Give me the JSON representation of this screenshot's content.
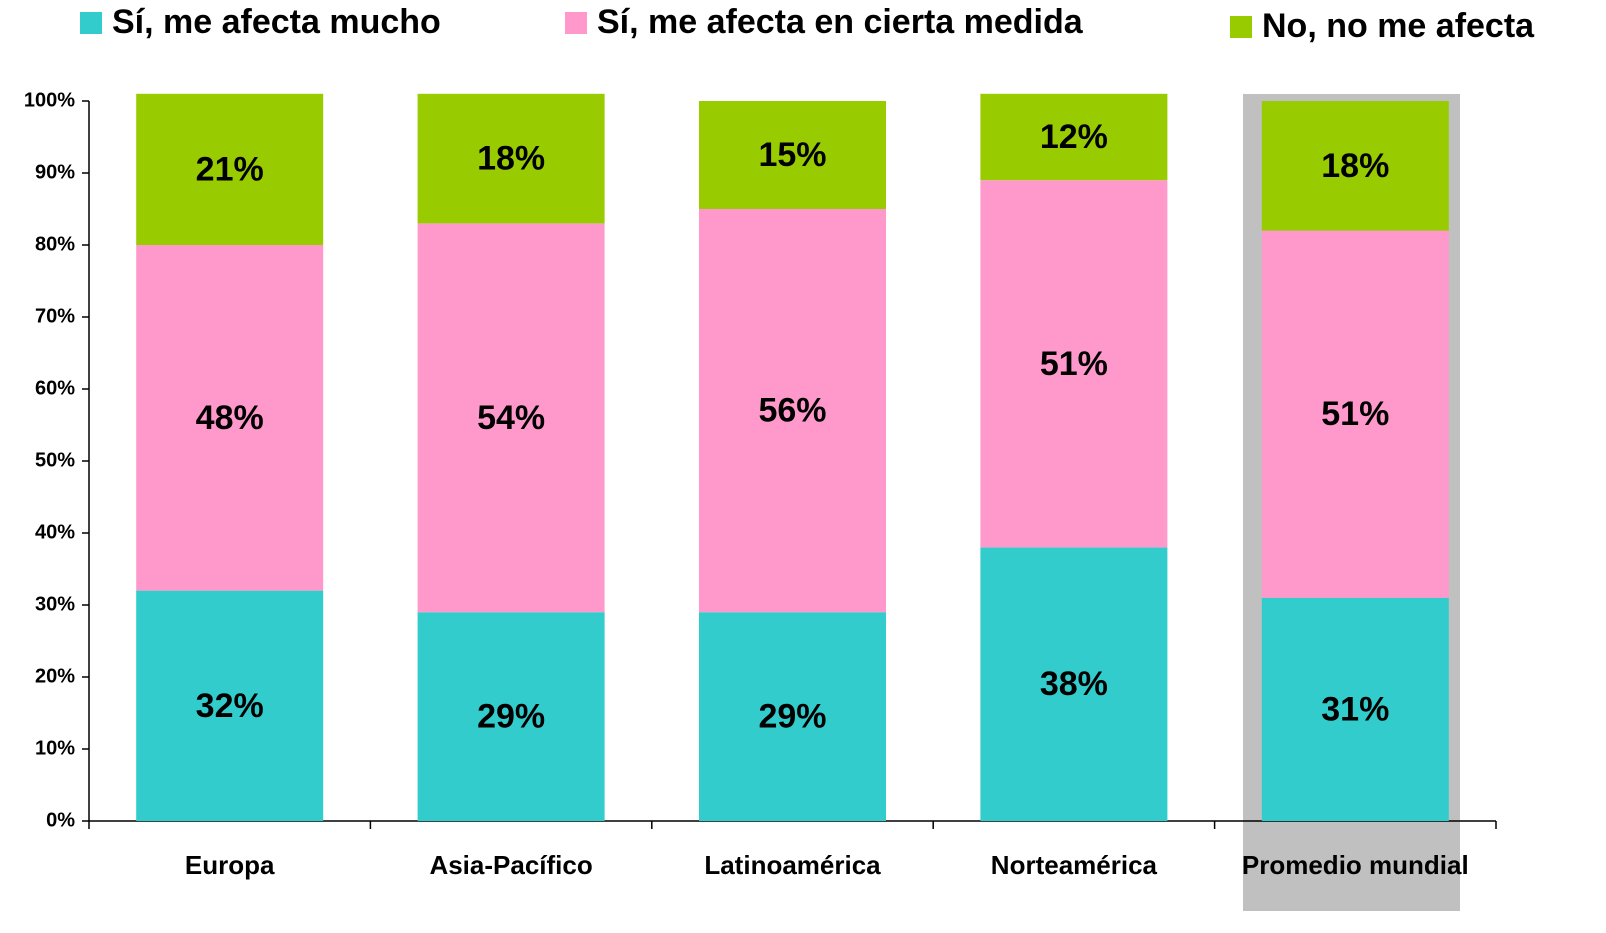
{
  "chart_data": {
    "type": "stacked_bar",
    "categories": [
      "Europa",
      "Asia-Pacífico",
      "Latinoamérica",
      "Norteamérica",
      "Promedio mundial"
    ],
    "series": [
      {
        "name": "Sí, me afecta mucho",
        "color": "#33cccc",
        "values": [
          32,
          29,
          29,
          38,
          31
        ],
        "value_labels": [
          "32%",
          "29%",
          "29%",
          "38%",
          "31%"
        ]
      },
      {
        "name": "Sí, me afecta en cierta medida",
        "color": "#ff99cc",
        "values": [
          48,
          54,
          56,
          51,
          51
        ],
        "value_labels": [
          "48%",
          "54%",
          "56%",
          "51%",
          "51%"
        ]
      },
      {
        "name": "No, no me afecta",
        "color": "#99cc00",
        "values": [
          21,
          18,
          15,
          12,
          18
        ],
        "value_labels": [
          "21%",
          "18%",
          "15%",
          "12%",
          "18%"
        ]
      }
    ],
    "ylim": [
      0,
      100
    ],
    "yticks": [
      {
        "value": 0,
        "label": "0%"
      },
      {
        "value": 10,
        "label": "10%"
      },
      {
        "value": 20,
        "label": "20%"
      },
      {
        "value": 30,
        "label": "30%"
      },
      {
        "value": 40,
        "label": "40%"
      },
      {
        "value": 50,
        "label": "50%"
      },
      {
        "value": 60,
        "label": "60%"
      },
      {
        "value": 70,
        "label": "70%"
      },
      {
        "value": 80,
        "label": "80%"
      },
      {
        "value": 90,
        "label": "90%"
      },
      {
        "value": 100,
        "label": "100%"
      }
    ],
    "legend": "top"
  }
}
